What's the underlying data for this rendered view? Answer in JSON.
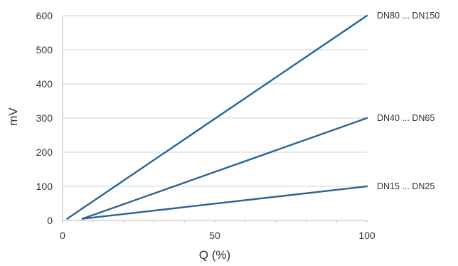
{
  "chart_data": {
    "type": "line",
    "xlabel": "Q (%)",
    "ylabel": "mV",
    "xlim": [
      0,
      100
    ],
    "ylim": [
      0,
      600
    ],
    "xticks": [
      0,
      50,
      100
    ],
    "yticks": [
      0,
      100,
      200,
      300,
      400,
      500,
      600
    ],
    "grid": "horizontal",
    "series": [
      {
        "name": "DN80 ... DN150",
        "x": [
          1.5,
          100
        ],
        "values": [
          5,
          600
        ],
        "color": "#2a6496"
      },
      {
        "name": "DN40 ... DN65",
        "x": [
          6.5,
          100
        ],
        "values": [
          5,
          300
        ],
        "color": "#2a6496"
      },
      {
        "name": "DN15 ... DN25",
        "x": [
          6.5,
          100
        ],
        "values": [
          5,
          100
        ],
        "color": "#2a6496"
      }
    ]
  }
}
